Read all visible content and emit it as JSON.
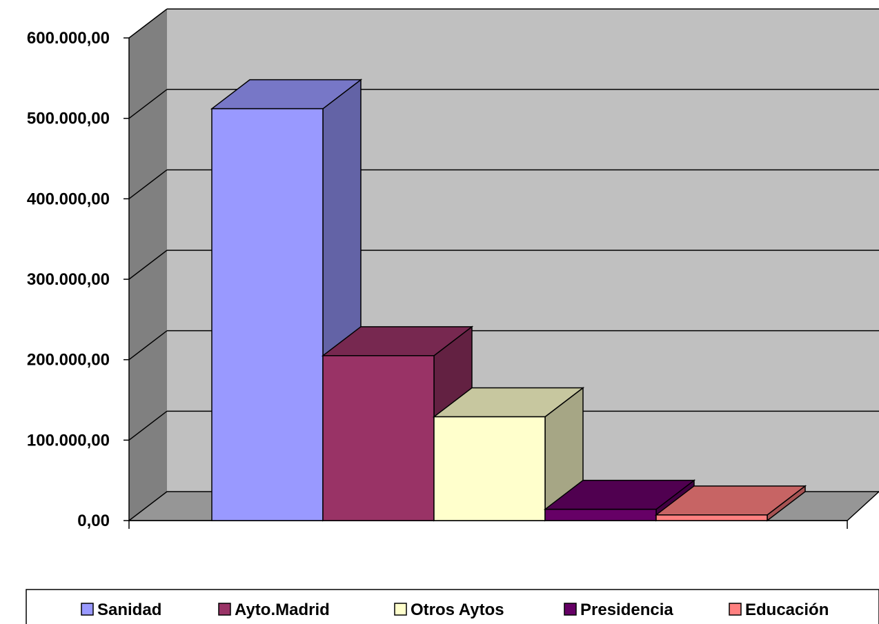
{
  "chart_data": {
    "type": "bar",
    "title": "",
    "xlabel": "",
    "ylabel": "",
    "ylim": [
      0,
      600000
    ],
    "yticks": [
      0,
      100000,
      200000,
      300000,
      400000,
      500000,
      600000
    ],
    "ytick_labels": [
      "0,00",
      "100.000,00",
      "200.000,00",
      "300.000,00",
      "400.000,00",
      "500.000,00",
      "600.000,00"
    ],
    "grid": true,
    "three_d": true,
    "legend_position": "bottom",
    "series": [
      {
        "name": "Sanidad",
        "value": 512000,
        "color": "#9999ff"
      },
      {
        "name": "Ayto.Madrid",
        "value": 205000,
        "color": "#993366"
      },
      {
        "name": "Otros Aytos",
        "value": 129000,
        "color": "#ffffcc"
      },
      {
        "name": "Presidencia",
        "value": 14000,
        "color": "#660066"
      },
      {
        "name": "Educación",
        "value": 7000,
        "color": "#ff8080"
      }
    ]
  }
}
